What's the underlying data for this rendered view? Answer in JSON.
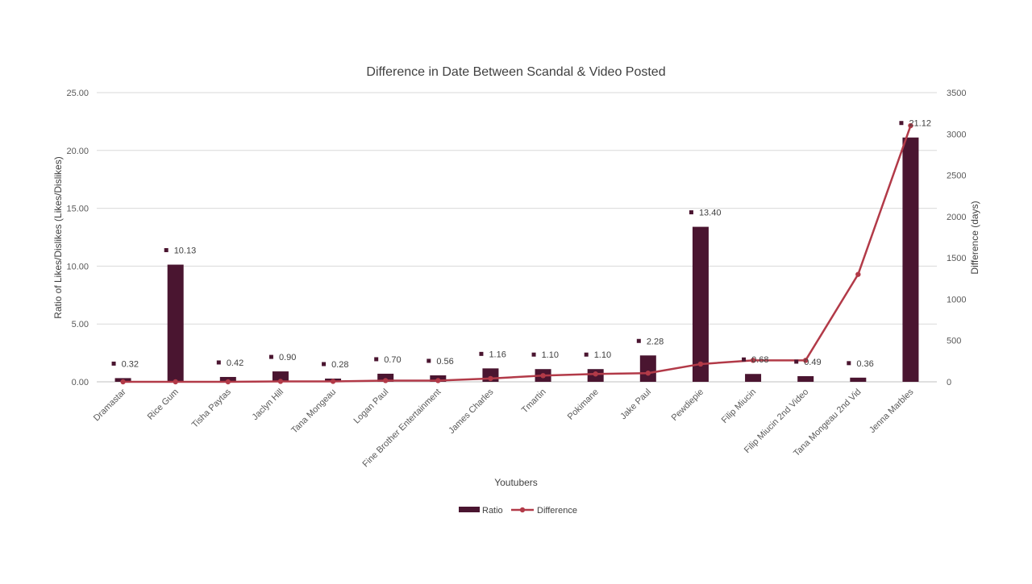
{
  "chart_data": {
    "type": "bar",
    "title": "Difference in Date Between Scandal & Video Posted",
    "xlabel": "Youtubers",
    "ylabel": "Ratio of Likes/Dislikes (Likes/Dislikes)",
    "y2label": "Difference (days)",
    "categories": [
      "Dramastar",
      "Rice Gum",
      "Tisha Paytas",
      "Jaclyn Hill",
      "Tana Mongeau",
      "Logan Paul",
      "Fine Brother Entertainment",
      "James Charles",
      "Tmartin",
      "Pokimane",
      "Jake Paul",
      "Pewdiepie",
      "Filip Miucin",
      "Filip Miucin 2nd Video",
      "Tana Mongeau 2nd Vid",
      "Jenna Marbles"
    ],
    "ylim": [
      0,
      25
    ],
    "y_ticks": [
      "0.00",
      "5.00",
      "10.00",
      "15.00",
      "20.00",
      "25.00"
    ],
    "y2lim": [
      0,
      3500
    ],
    "y2_ticks": [
      "0",
      "500",
      "1000",
      "1500",
      "2000",
      "2500",
      "3000",
      "3500"
    ],
    "grid": true,
    "legend_position": "bottom",
    "series": [
      {
        "name": "Ratio",
        "type": "bar",
        "axis": "left",
        "color": "#4a1530",
        "values": [
          0.32,
          10.13,
          0.42,
          0.9,
          0.28,
          0.7,
          0.56,
          1.16,
          1.1,
          1.1,
          2.28,
          13.4,
          0.68,
          0.49,
          0.36,
          21.12
        ],
        "labels": [
          "0.32",
          "10.13",
          "0.42",
          "0.90",
          "0.28",
          "0.70",
          "0.56",
          "1.16",
          "1.10",
          "1.10",
          "2.28",
          "13.40",
          "0.68",
          "0.49",
          "0.36",
          "21.12"
        ]
      },
      {
        "name": "Difference",
        "type": "line",
        "axis": "right",
        "color": "#b23a48",
        "values": [
          0,
          0,
          0,
          5,
          5,
          15,
          15,
          40,
          75,
          95,
          105,
          215,
          260,
          260,
          1300,
          3100
        ]
      }
    ]
  }
}
